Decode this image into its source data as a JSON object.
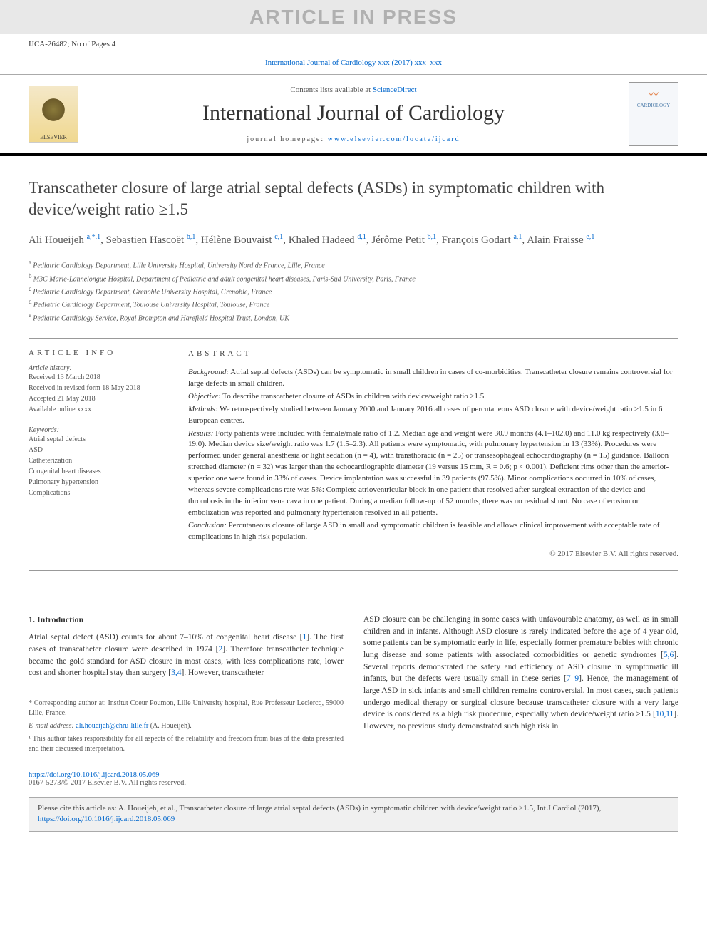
{
  "watermark": "ARTICLE IN PRESS",
  "header_id": "IJCA-26482; No of Pages 4",
  "journal_ref_text": "International Journal of Cardiology xxx (2017) xxx–xxx",
  "masthead": {
    "contents_pre": "Contents lists available at ",
    "contents_link": "ScienceDirect",
    "journal_title": "International Journal of Cardiology",
    "homepage_pre": "journal homepage: ",
    "homepage_link": "www.elsevier.com/locate/ijcard",
    "elsevier": "ELSEVIER",
    "cover_label": "CARDIOLOGY"
  },
  "article": {
    "title": "Transcatheter closure of large atrial septal defects (ASDs) in symptomatic children with device/weight ratio ≥1.5",
    "authors_html": [
      {
        "name": "Ali Houeijeh ",
        "sup": "a,*,1"
      },
      {
        "name": ", Sebastien Hascoët ",
        "sup": "b,1"
      },
      {
        "name": ", Hélène Bouvaist ",
        "sup": "c,1"
      },
      {
        "name": ", Khaled Hadeed ",
        "sup": "d,1"
      },
      {
        "name": ", Jérôme Petit ",
        "sup": "b,1"
      },
      {
        "name": ", François Godart ",
        "sup": "a,1"
      },
      {
        "name": ", Alain Fraisse ",
        "sup": "e,1"
      }
    ],
    "affiliations": [
      {
        "sup": "a",
        "text": "Pediatric Cardiology Department, Lille University Hospital, University Nord de France, Lille, France"
      },
      {
        "sup": "b",
        "text": "M3C Marie-Lannelongue Hospital, Department of Pediatric and adult congenital heart diseases, Paris-Sud University, Paris, France"
      },
      {
        "sup": "c",
        "text": "Pediatric Cardiology Department, Grenoble University Hospital, Grenoble, France"
      },
      {
        "sup": "d",
        "text": "Pediatric Cardiology Department, Toulouse University Hospital, Toulouse, France"
      },
      {
        "sup": "e",
        "text": "Pediatric Cardiology Service, Royal Brompton and Harefield Hospital Trust, London, UK"
      }
    ]
  },
  "info": {
    "heading": "ARTICLE INFO",
    "history_label": "Article history:",
    "history": [
      "Received 13 March 2018",
      "Received in revised form 18 May 2018",
      "Accepted 21 May 2018",
      "Available online xxxx"
    ],
    "keywords_label": "Keywords:",
    "keywords": [
      "Atrial septal defects",
      "ASD",
      "Catheterization",
      "Congenital heart diseases",
      "Pulmonary hypertension",
      "Complications"
    ]
  },
  "abstract": {
    "heading": "ABSTRACT",
    "paras": [
      {
        "label": "Background:",
        "text": " Atrial septal defects (ASDs) can be symptomatic in small children in cases of co-morbidities. Transcatheter closure remains controversial for large defects in small children."
      },
      {
        "label": "Objective:",
        "text": " To describe transcatheter closure of ASDs in children with device/weight ratio ≥1.5."
      },
      {
        "label": "Methods:",
        "text": " We retrospectively studied between January 2000 and January 2016 all cases of percutaneous ASD closure with device/weight ratio ≥1.5 in 6 European centres."
      },
      {
        "label": "Results:",
        "text": " Forty patients were included with female/male ratio of 1.2. Median age and weight were 30.9 months (4.1–102.0) and 11.0 kg respectively (3.8–19.0). Median device size/weight ratio was 1.7 (1.5–2.3). All patients were symptomatic, with pulmonary hypertension in 13 (33%). Procedures were performed under general anesthesia or light sedation (n = 4), with transthoracic (n = 25) or transesophageal echocardiography (n = 15) guidance. Balloon stretched diameter (n = 32) was larger than the echocardiographic diameter (19 versus 15 mm, R = 0.6; p < 0.001). Deficient rims other than the anterior-superior one were found in 33% of cases. Device implantation was successful in 39 patients (97.5%). Minor complications occurred in 10% of cases, whereas severe complications rate was 5%: Complete atrioventricular block in one patient that resolved after surgical extraction of the device and thrombosis in the inferior vena cava in one patient. During a median follow-up of 52 months, there was no residual shunt. No case of erosion or embolization was reported and pulmonary hypertension resolved in all patients."
      },
      {
        "label": "Conclusion:",
        "text": " Percutaneous closure of large ASD in small and symptomatic children is feasible and allows clinical improvement with acceptable rate of complications in high risk population."
      }
    ],
    "copyright": "© 2017 Elsevier B.V. All rights reserved."
  },
  "body": {
    "section_heading": "1. Introduction",
    "col1": "Atrial septal defect (ASD) counts for about 7–10% of congenital heart disease [1]. The first cases of transcatheter closure were described in 1974 [2]. Therefore transcatheter technique became the gold standard for ASD closure in most cases, with less complications rate, lower cost and shorter hospital stay than surgery [3,4]. However, transcatheter",
    "col2": "ASD closure can be challenging in some cases with unfavourable anatomy, as well as in small children and in infants. Although ASD closure is rarely indicated before the age of 4 year old, some patients can be symptomatic early in life, especially former premature babies with chronic lung disease and some patients with associated comorbidities or genetic syndromes [5,6]. Several reports demonstrated the safety and efficiency of ASD closure in symptomatic ill infants, but the defects were usually small in these series [7–9]. Hence, the management of large ASD in sick infants and small children remains controversial. In most cases, such patients undergo medical therapy or surgical closure because transcatheter closure with a very large device is considered as a high risk procedure, especially when device/weight ratio ≥1.5 [10,11]. However, no previous study demonstrated such high risk in"
  },
  "footnotes": {
    "corr": "* Corresponding author at: Institut Coeur Poumon, Lille University hospital, Rue Professeur Leclercq, 59000 Lille, France.",
    "email_label": "E-mail address: ",
    "email": "ali.houeijeh@chru-lille.fr",
    "email_post": " (A. Houeijeh).",
    "author_note": "¹ This author takes responsibility for all aspects of the reliability and freedom from bias of the data presented and their discussed interpretation."
  },
  "doi": {
    "link": "https://doi.org/10.1016/j.ijcard.2018.05.069",
    "issn": "0167-5273/© 2017 Elsevier B.V. All rights reserved."
  },
  "citebox": {
    "pre": "Please cite this article as: A. Houeijeh, et al., Transcatheter closure of large atrial septal defects (ASDs) in symptomatic children with device/weight ratio ≥1.5, Int J Cardiol (2017), ",
    "link": "https://doi.org/10.1016/j.ijcard.2018.05.069"
  },
  "refs_in_text": [
    "1",
    "2",
    "3,4",
    "5,6",
    "7–9",
    "10,11"
  ],
  "colors": {
    "link": "#0066cc",
    "watermark_bg": "#e8e8e8",
    "watermark_fg": "#b0b0b0",
    "rule": "#999999",
    "citebox_bg": "#f0f0f0"
  }
}
